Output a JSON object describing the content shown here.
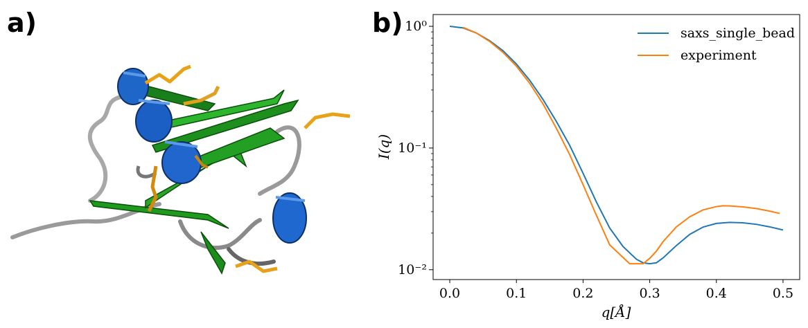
{
  "panels": {
    "a_label": "a)",
    "b_label": "b)"
  },
  "chart_data": {
    "type": "line",
    "xlabel": "q[Å]",
    "ylabel": "I(q)",
    "xlim": [
      -0.025,
      0.525
    ],
    "ylim": [
      0.0083,
      1.25
    ],
    "yscale": "log",
    "xticks": [
      0.0,
      0.1,
      0.2,
      0.3,
      0.4,
      0.5
    ],
    "xtick_labels": [
      "0.0",
      "0.1",
      "0.2",
      "0.3",
      "0.4",
      "0.5"
    ],
    "yticks": [
      1,
      0.1,
      0.01
    ],
    "ytick_labels": [
      "10⁰",
      "10⁻¹",
      "10⁻²"
    ],
    "legend_position": "top-right",
    "grid": false,
    "series": [
      {
        "name": "saxs_single_bead",
        "color": "#1f77b4",
        "x": [
          0.0,
          0.02,
          0.04,
          0.06,
          0.08,
          0.1,
          0.12,
          0.14,
          0.16,
          0.18,
          0.2,
          0.22,
          0.24,
          0.26,
          0.28,
          0.29,
          0.3,
          0.31,
          0.32,
          0.34,
          0.36,
          0.38,
          0.4,
          0.42,
          0.44,
          0.46,
          0.48,
          0.5
        ],
        "y": [
          1.0,
          0.97,
          0.88,
          0.76,
          0.63,
          0.49,
          0.36,
          0.25,
          0.165,
          0.105,
          0.062,
          0.036,
          0.022,
          0.0155,
          0.0122,
          0.0114,
          0.0112,
          0.0114,
          0.0125,
          0.0158,
          0.0195,
          0.0224,
          0.024,
          0.0245,
          0.0243,
          0.0236,
          0.0225,
          0.0212
        ]
      },
      {
        "name": "experiment",
        "color": "#ff7f0e",
        "x": [
          0.02,
          0.04,
          0.06,
          0.08,
          0.1,
          0.12,
          0.14,
          0.16,
          0.18,
          0.2,
          0.22,
          0.24,
          0.26,
          0.27,
          0.28,
          0.29,
          0.3,
          0.31,
          0.32,
          0.34,
          0.36,
          0.38,
          0.4,
          0.41,
          0.42,
          0.44,
          0.46,
          0.48,
          0.495
        ],
        "y": [
          0.98,
          0.88,
          0.75,
          0.61,
          0.47,
          0.34,
          0.23,
          0.145,
          0.088,
          0.05,
          0.028,
          0.016,
          0.0126,
          0.0112,
          0.0112,
          0.0112,
          0.0124,
          0.0142,
          0.017,
          0.0225,
          0.0272,
          0.031,
          0.033,
          0.0335,
          0.0334,
          0.0328,
          0.0318,
          0.0303,
          0.029
        ]
      }
    ]
  }
}
